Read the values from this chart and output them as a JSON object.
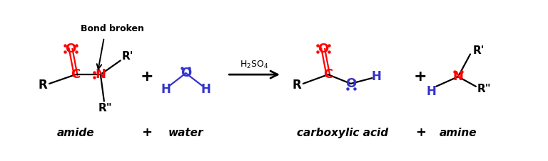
{
  "bg_color": "#ffffff",
  "figsize": [
    7.68,
    2.27
  ],
  "dpi": 100,
  "red": "#ff0000",
  "blue": "#3333cc",
  "black": "#000000",
  "amide_label": "amide",
  "water_label": "water",
  "carboxylic_label": "carboxylic acid",
  "amine_label": "amine",
  "catalyst": "H₂SO₄",
  "bond_broken_label": "Bond broken"
}
